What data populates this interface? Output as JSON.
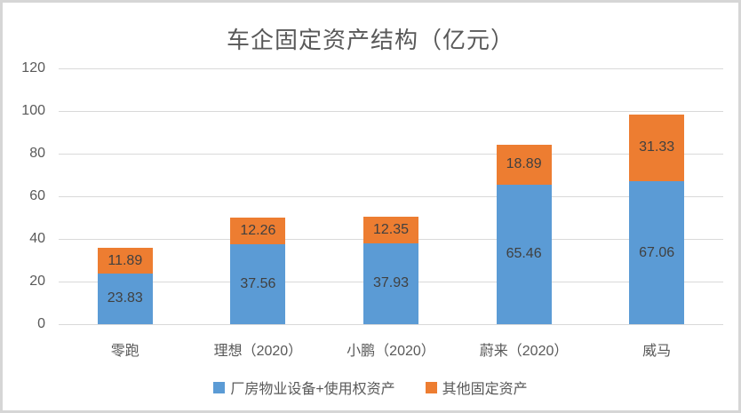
{
  "title": "车企固定资产结构（亿元）",
  "chart_data": {
    "type": "bar",
    "stacked": true,
    "title": "车企固定资产结构（亿元）",
    "categories": [
      "零跑",
      "理想（2020）",
      "小鹏（2020）",
      "蔚来（2020）",
      "威马"
    ],
    "series": [
      {
        "name": "厂房物业设备+使用权资产",
        "color": "#5B9BD5",
        "values": [
          23.83,
          37.56,
          37.93,
          65.46,
          67.06
        ]
      },
      {
        "name": "其他固定资产",
        "color": "#ED7D31",
        "values": [
          11.89,
          12.26,
          12.35,
          18.89,
          31.33
        ]
      }
    ],
    "stack_totals": [
      35.72,
      49.82,
      50.28,
      84.35,
      98.39
    ],
    "ylim": [
      0,
      120
    ],
    "ytick_step": 20,
    "ytick_labels": [
      "0",
      "20",
      "40",
      "60",
      "80",
      "100",
      "120"
    ],
    "grid": true,
    "data_labels": true,
    "legend_position": "bottom",
    "colors": {
      "gridline": "#d9d9d9",
      "axis_text": "#595959",
      "data_label_text": "#404040",
      "frame_border": "#d6d6d6",
      "background": "#ffffff"
    }
  }
}
